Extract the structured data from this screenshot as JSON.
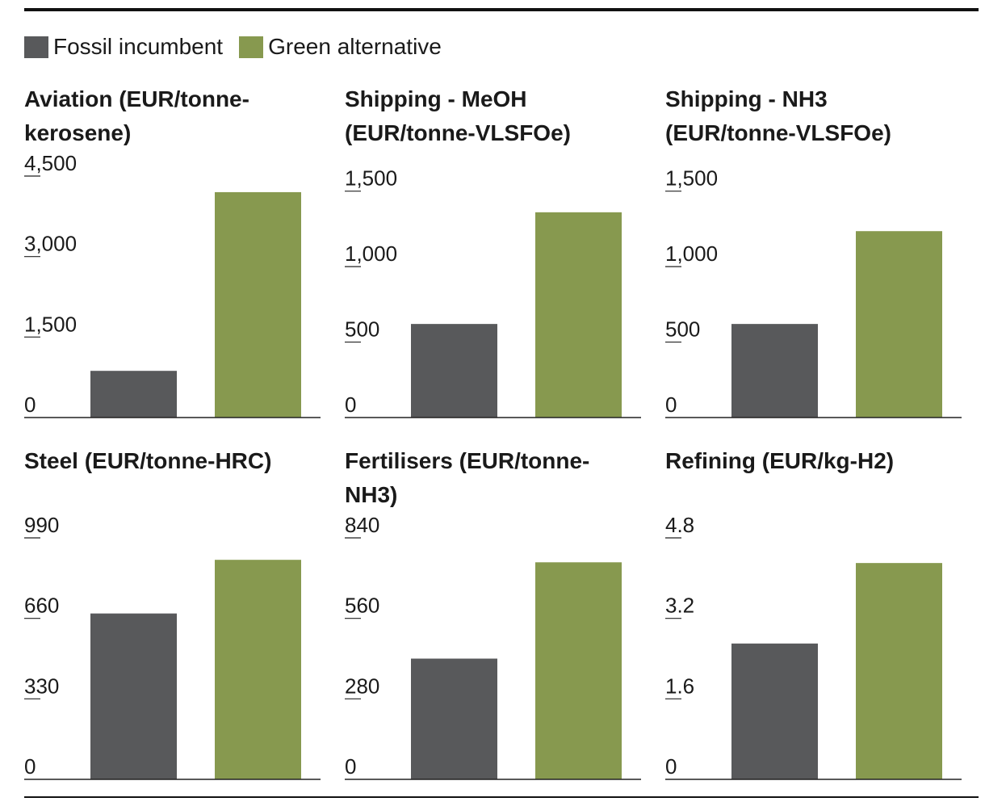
{
  "legend": {
    "fossil_label": "Fossil incumbent",
    "green_label": "Green alternative"
  },
  "colors": {
    "fossil": "#58595b",
    "green": "#87994f",
    "axis": "#222222"
  },
  "chart_data": [
    {
      "type": "bar",
      "title": "Aviation (EUR/tonne-kerosene)",
      "title_display": "Aviation (EUR/tonne-\nkerosene)",
      "categories": [
        "Fossil incumbent",
        "Green alternative"
      ],
      "values": [
        870,
        4200
      ],
      "ylim": [
        0,
        4500
      ],
      "yticks": [
        0,
        1500,
        3000,
        4500
      ],
      "ytick_labels": [
        "0",
        "1,500",
        "3,000",
        "4,500"
      ]
    },
    {
      "type": "bar",
      "title": "Shipping - MeOH (EUR/tonne-VLSFOe)",
      "title_display": "Shipping - MeOH\n(EUR/tonne-VLSFOe)",
      "categories": [
        "Fossil incumbent",
        "Green alternative"
      ],
      "values": [
        620,
        1360
      ],
      "ylim": [
        0,
        1600
      ],
      "yticks": [
        0,
        500,
        1000,
        1500
      ],
      "ytick_labels": [
        "0",
        "500",
        "1,000",
        "1,500"
      ]
    },
    {
      "type": "bar",
      "title": "Shipping - NH3 (EUR/tonne-VLSFOe)",
      "title_display": "Shipping - NH3\n(EUR/tonne-VLSFOe)",
      "categories": [
        "Fossil incumbent",
        "Green alternative"
      ],
      "values": [
        620,
        1235
      ],
      "ylim": [
        0,
        1600
      ],
      "yticks": [
        0,
        500,
        1000,
        1500
      ],
      "ytick_labels": [
        "0",
        "500",
        "1,000",
        "1,500"
      ]
    },
    {
      "type": "bar",
      "title": "Steel (EUR/tonne-HRC)",
      "title_display": "Steel (EUR/tonne-HRC)",
      "categories": [
        "Fossil incumbent",
        "Green alternative"
      ],
      "values": [
        680,
        900
      ],
      "ylim": [
        0,
        990
      ],
      "yticks": [
        0,
        330,
        660,
        990
      ],
      "ytick_labels": [
        "0",
        "330",
        "660",
        "990"
      ]
    },
    {
      "type": "bar",
      "title": "Fertilisers (EUR/tonne-NH3)",
      "title_display": "Fertilisers (EUR/tonne-\nNH3)",
      "categories": [
        "Fossil incumbent",
        "Green alternative"
      ],
      "values": [
        420,
        755
      ],
      "ylim": [
        0,
        840
      ],
      "yticks": [
        0,
        280,
        560,
        840
      ],
      "ytick_labels": [
        "0",
        "280",
        "560",
        "840"
      ]
    },
    {
      "type": "bar",
      "title": "Refining (EUR/kg-H2)",
      "title_display": "Refining (EUR/kg-H2)",
      "categories": [
        "Fossil incumbent",
        "Green alternative"
      ],
      "values": [
        2.7,
        4.3
      ],
      "ylim": [
        0,
        4.8
      ],
      "yticks": [
        0,
        1.6,
        3.2,
        4.8
      ],
      "ytick_labels": [
        "0",
        "1.6",
        "3.2",
        "4.8"
      ]
    }
  ]
}
